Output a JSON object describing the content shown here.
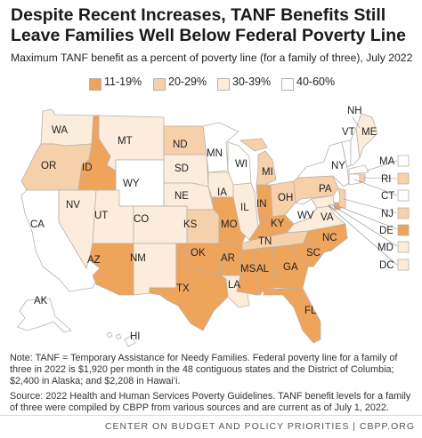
{
  "title": "Despite Recent Increases, TANF Benefits Still Leave Families Well Below Federal Poverty Line",
  "subtitle": "Maximum TANF benefit as a percent of poverty line (for a family of three), July 2022",
  "colors": {
    "c1": "#efa45c",
    "c2": "#f6d0aa",
    "c3": "#fbecdc",
    "c4": "#ffffff",
    "border": "#b9b1a8"
  },
  "legend": [
    {
      "label": "11-19%",
      "color": "#efa45c"
    },
    {
      "label": "20-29%",
      "color": "#f6d0aa"
    },
    {
      "label": "30-39%",
      "color": "#fbecdc"
    },
    {
      "label": "40-60%",
      "color": "#ffffff"
    }
  ],
  "states": [
    {
      "abbr": "WA"
    },
    {
      "abbr": "OR"
    },
    {
      "abbr": "CA"
    },
    {
      "abbr": "NV"
    },
    {
      "abbr": "ID"
    },
    {
      "abbr": "MT"
    },
    {
      "abbr": "WY"
    },
    {
      "abbr": "UT"
    },
    {
      "abbr": "CO"
    },
    {
      "abbr": "AZ"
    },
    {
      "abbr": "NM"
    },
    {
      "abbr": "ND"
    },
    {
      "abbr": "SD"
    },
    {
      "abbr": "NE"
    },
    {
      "abbr": "KS"
    },
    {
      "abbr": "OK"
    },
    {
      "abbr": "TX"
    },
    {
      "abbr": "MN"
    },
    {
      "abbr": "IA"
    },
    {
      "abbr": "MO"
    },
    {
      "abbr": "AR"
    },
    {
      "abbr": "LA"
    },
    {
      "abbr": "WI"
    },
    {
      "abbr": "IL"
    },
    {
      "abbr": "MI"
    },
    {
      "abbr": "IN"
    },
    {
      "abbr": "OH"
    },
    {
      "abbr": "KY"
    },
    {
      "abbr": "TN"
    },
    {
      "abbr": "MS"
    },
    {
      "abbr": "AL"
    },
    {
      "abbr": "GA"
    },
    {
      "abbr": "FL"
    },
    {
      "abbr": "SC"
    },
    {
      "abbr": "NC"
    },
    {
      "abbr": "VA"
    },
    {
      "abbr": "WV"
    },
    {
      "abbr": "PA"
    },
    {
      "abbr": "NY"
    },
    {
      "abbr": "VT"
    },
    {
      "abbr": "NH"
    },
    {
      "abbr": "ME"
    },
    {
      "abbr": "AK"
    },
    {
      "abbr": "HI"
    }
  ],
  "callouts": [
    {
      "abbr": "MA"
    },
    {
      "abbr": "RI"
    },
    {
      "abbr": "CT"
    },
    {
      "abbr": "NJ"
    },
    {
      "abbr": "DE"
    },
    {
      "abbr": "MD"
    },
    {
      "abbr": "DC"
    }
  ],
  "notes": {
    "note": "Note: TANF = Temporary Assistance for Needy Families. Federal poverty line for a family of three in 2022 is $1,920 per month in the 48 contiguous states and the District of Columbia; $2,400 in Alaska; and $2,208 in Hawai’i.",
    "source": "Source: 2022 Health and Human Services Poverty Guidelines. TANF benefit levels for a family of three were compiled by CBPP from various sources and are current as of July 1, 2022."
  },
  "footer": "CENTER ON BUDGET AND POLICY PRIORITIES | CBPP.ORG"
}
